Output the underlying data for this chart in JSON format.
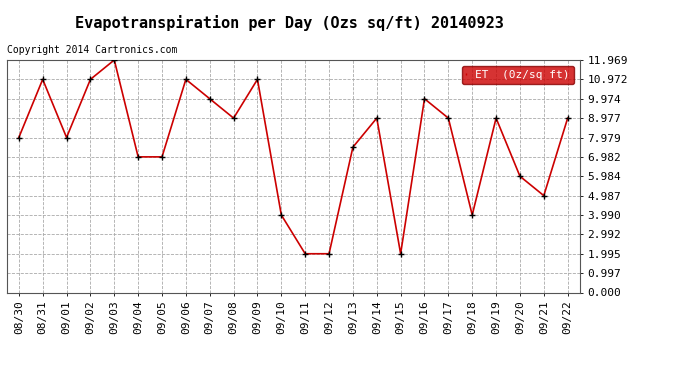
{
  "title": "Evapotranspiration per Day (Ozs sq/ft) 20140923",
  "copyright": "Copyright 2014 Cartronics.com",
  "legend_label": "ET  (0z/sq ft)",
  "x_labels": [
    "08/30",
    "08/31",
    "09/01",
    "09/02",
    "09/03",
    "09/04",
    "09/05",
    "09/06",
    "09/07",
    "09/08",
    "09/09",
    "09/10",
    "09/11",
    "09/12",
    "09/13",
    "09/14",
    "09/15",
    "09/16",
    "09/17",
    "09/18",
    "09/19",
    "09/20",
    "09/21",
    "09/22"
  ],
  "y_values": [
    7.979,
    10.972,
    7.979,
    10.972,
    11.969,
    6.982,
    6.982,
    10.972,
    9.974,
    8.977,
    10.972,
    3.99,
    1.995,
    1.995,
    7.482,
    8.977,
    1.995,
    9.974,
    8.977,
    3.99,
    8.977,
    5.984,
    4.987,
    8.977
  ],
  "y_ticks": [
    0.0,
    0.997,
    1.995,
    2.992,
    3.99,
    4.987,
    5.984,
    6.982,
    7.979,
    8.977,
    9.974,
    10.972,
    11.969
  ],
  "y_min": 0.0,
  "y_max": 11.969,
  "line_color": "#cc0000",
  "marker_color": "#000000",
  "bg_color": "#ffffff",
  "grid_color": "#aaaaaa",
  "legend_bg": "#cc0000",
  "legend_text_color": "#ffffff",
  "title_fontsize": 11,
  "copyright_fontsize": 7,
  "tick_fontsize": 8,
  "legend_fontsize": 8,
  "fig_width": 6.9,
  "fig_height": 3.75,
  "dpi": 100
}
